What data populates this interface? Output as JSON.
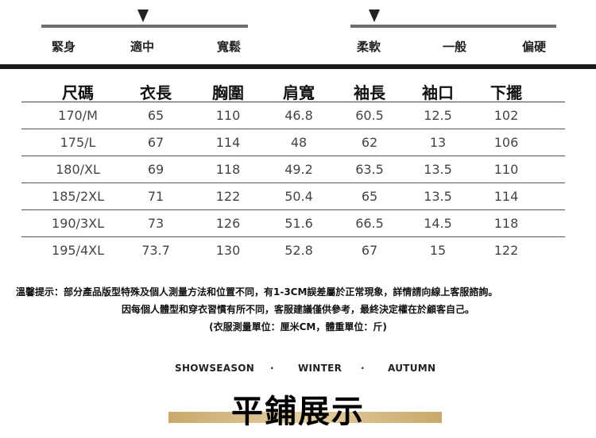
{
  "fit_scale": {
    "labels": [
      "緊身",
      "適中",
      "寬鬆"
    ],
    "selected": "適中"
  },
  "softness_scale": {
    "labels": [
      "柔軟",
      "一般",
      "偏硬"
    ],
    "selected": "柔軟"
  },
  "size_table": {
    "headers": [
      "尺碼",
      "衣長",
      "胸圍",
      "肩寬",
      "袖長",
      "袖口",
      "下擺"
    ],
    "rows": [
      [
        "170/M",
        "65",
        "110",
        "46.8",
        "60.5",
        "12.5",
        "102"
      ],
      [
        "175/L",
        "67",
        "114",
        "48",
        "62",
        "13",
        "106"
      ],
      [
        "180/XL",
        "69",
        "118",
        "49.2",
        "63.5",
        "13.5",
        "110"
      ],
      [
        "185/2XL",
        "71",
        "122",
        "50.4",
        "65",
        "13.5",
        "114"
      ],
      [
        "190/3XL",
        "73",
        "126",
        "51.6",
        "66.5",
        "14.5",
        "118"
      ],
      [
        "195/4XL",
        "73.7",
        "130",
        "52.8",
        "67",
        "15",
        "122"
      ]
    ]
  },
  "notes": [
    "溫馨提示：部分產品版型特殊及個人測量方法和位置不同，有1-3CM誤差屬於正常現象，詳情請向線上客服諮詢。",
    "因每個人體型和穿衣習慣有所不同，客服建議僅供參考，最終決定權在於顧客自己。",
    "(衣服測量單位：厘米CM，體重單位：斤)"
  ],
  "season": {
    "brand": "SHOWSEASON",
    "sep": "·",
    "s1": "WINTER",
    "s2": "AUTUMN"
  },
  "section_title": "平鋪展示",
  "colors": {
    "scale_line": "#6e6e6e",
    "gold": "#c9a86a"
  }
}
